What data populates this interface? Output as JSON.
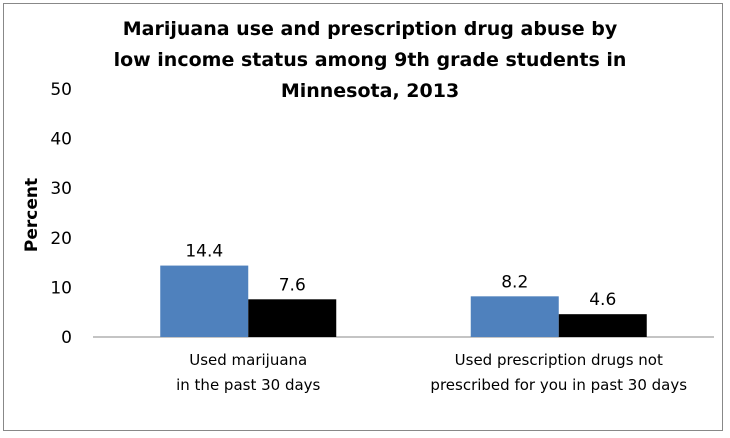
{
  "chart_data": {
    "type": "bar",
    "title": "Marijuana use and prescription drug abuse by low income status among 9th grade students in Minnesota, 2013",
    "ylabel": "Percent",
    "xlabel": "",
    "ylim": [
      0,
      50
    ],
    "yticks": [
      0,
      10,
      20,
      30,
      40,
      50
    ],
    "grid": false,
    "legend": "none",
    "categories": [
      [
        "Used marijuana",
        "in the past 30 days"
      ],
      [
        "Used prescription drugs not",
        "prescribed for you in past 30 days"
      ]
    ],
    "series": [
      {
        "values": [
          14.4,
          8.2
        ],
        "labels": [
          "14.4",
          "8.2"
        ],
        "color": "#4f81bd"
      },
      {
        "values": [
          7.6,
          4.6
        ],
        "labels": [
          "7.6",
          "4.6"
        ],
        "color": "#000000"
      }
    ]
  }
}
